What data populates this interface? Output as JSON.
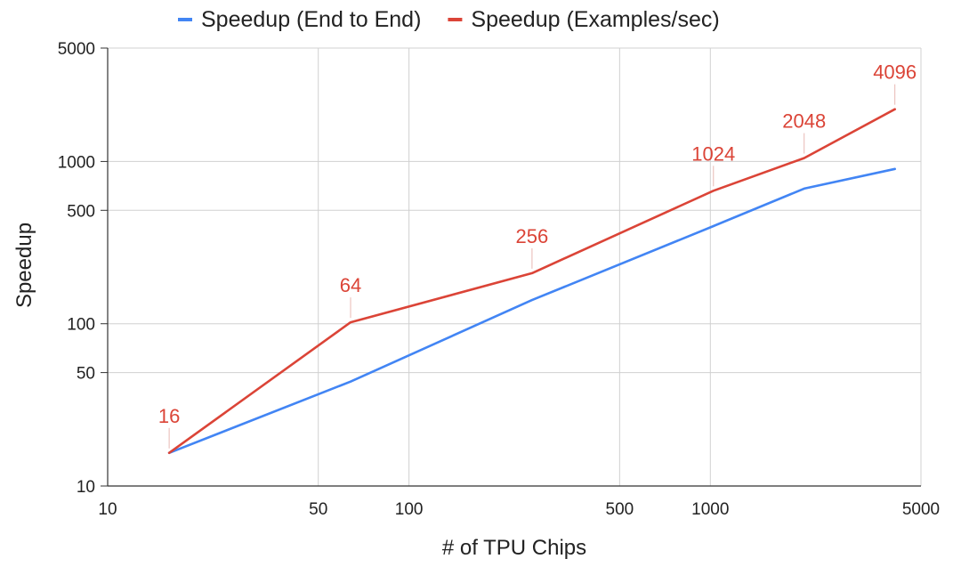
{
  "chart_data": {
    "type": "line",
    "title": "",
    "xlabel": "# of TPU Chips",
    "ylabel": "Speedup",
    "x_scale": "log",
    "y_scale": "log",
    "xlim": [
      10,
      5000
    ],
    "ylim": [
      10,
      5000
    ],
    "x_ticks": [
      10,
      50,
      100,
      500,
      1000,
      5000
    ],
    "y_ticks": [
      10,
      50,
      100,
      500,
      1000,
      5000
    ],
    "x_tick_labels": [
      "10",
      "50",
      "100",
      "500",
      "1000",
      "5000"
    ],
    "y_tick_labels": [
      "10",
      "50",
      "100",
      "500",
      "1000",
      "5000"
    ],
    "grid": true,
    "legend_position": "top",
    "series": [
      {
        "name": "Speedup (End to End)",
        "color": "#4285F4",
        "x": [
          16,
          64,
          256,
          1024,
          2048,
          4096
        ],
        "y": [
          16,
          44,
          140,
          400,
          680,
          900
        ]
      },
      {
        "name": "Speedup (Examples/sec)",
        "color": "#DB4437",
        "x": [
          16,
          64,
          256,
          1024,
          2048,
          4096
        ],
        "y": [
          16,
          102,
          205,
          660,
          1050,
          2100
        ],
        "data_labels": [
          "16",
          "64",
          "256",
          "1024",
          "2048",
          "4096"
        ]
      }
    ]
  }
}
